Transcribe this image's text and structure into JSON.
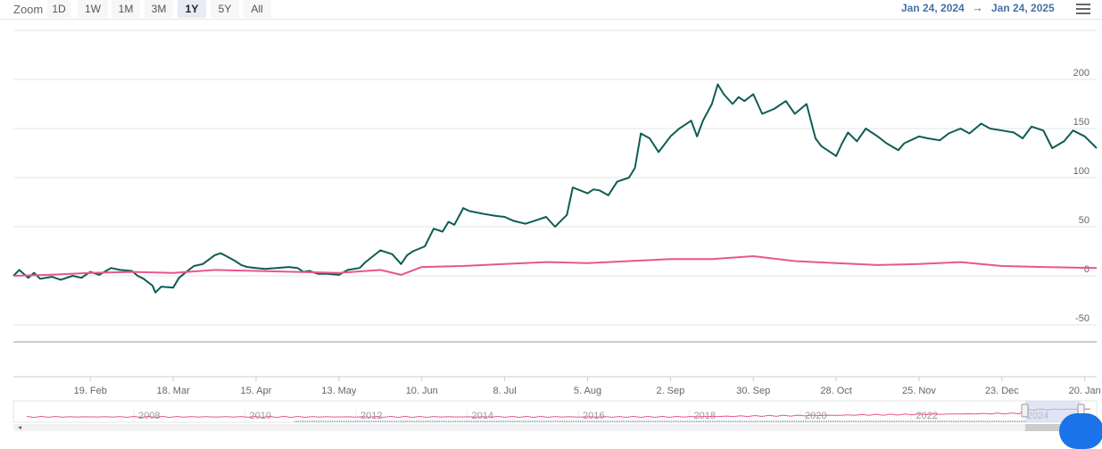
{
  "toolbar": {
    "zoom_label": "Zoom",
    "buttons": [
      "1D",
      "1W",
      "1M",
      "3M",
      "1Y",
      "5Y",
      "All"
    ],
    "active": "1Y",
    "range_from": "Jan 24, 2024",
    "range_arrow": "→",
    "range_to": "Jan 24, 2025"
  },
  "colors": {
    "series_1": "#0e5c55",
    "series_2": "#e8578a",
    "range_text": "#4572a7",
    "gridline": "#e6e6e6",
    "navigator_fill": "#c9d3ee"
  },
  "chart_data": {
    "type": "line",
    "x_tick_labels": [
      "19. Feb",
      "18. Mar",
      "15. Apr",
      "13. May",
      "10. Jun",
      "8. Jul",
      "5. Aug",
      "2. Sep",
      "30. Sep",
      "28. Oct",
      "25. Nov",
      "23. Dec",
      "20. Jan"
    ],
    "y_ticks": [
      200,
      150,
      100,
      50,
      0,
      -50
    ],
    "ylim": [
      -50,
      200
    ],
    "xlim": [
      "2024-01-24",
      "2025-01-24"
    ],
    "grid": true,
    "series": [
      {
        "color": "#0e5c55",
        "points": [
          [
            "2024-01-24",
            0
          ],
          [
            "2024-01-26",
            6
          ],
          [
            "2024-01-29",
            -2
          ],
          [
            "2024-01-31",
            3
          ],
          [
            "2024-02-02",
            -3
          ],
          [
            "2024-02-06",
            -1
          ],
          [
            "2024-02-09",
            -4
          ],
          [
            "2024-02-13",
            0
          ],
          [
            "2024-02-16",
            -2
          ],
          [
            "2024-02-19",
            4
          ],
          [
            "2024-02-22",
            1
          ],
          [
            "2024-02-26",
            8
          ],
          [
            "2024-02-29",
            6
          ],
          [
            "2024-03-04",
            5
          ],
          [
            "2024-03-06",
            0
          ],
          [
            "2024-03-08",
            -3
          ],
          [
            "2024-03-11",
            -10
          ],
          [
            "2024-03-12",
            -17
          ],
          [
            "2024-03-14",
            -11
          ],
          [
            "2024-03-18",
            -12
          ],
          [
            "2024-03-20",
            -2
          ],
          [
            "2024-03-22",
            3
          ],
          [
            "2024-03-25",
            10
          ],
          [
            "2024-03-28",
            12
          ],
          [
            "2024-04-01",
            21
          ],
          [
            "2024-04-03",
            23
          ],
          [
            "2024-04-05",
            20
          ],
          [
            "2024-04-08",
            15
          ],
          [
            "2024-04-10",
            11
          ],
          [
            "2024-04-12",
            9
          ],
          [
            "2024-04-15",
            8
          ],
          [
            "2024-04-18",
            7
          ],
          [
            "2024-04-22",
            8
          ],
          [
            "2024-04-26",
            9
          ],
          [
            "2024-04-29",
            8
          ],
          [
            "2024-05-01",
            4
          ],
          [
            "2024-05-03",
            5
          ],
          [
            "2024-05-06",
            2
          ],
          [
            "2024-05-09",
            2
          ],
          [
            "2024-05-13",
            1
          ],
          [
            "2024-05-16",
            6
          ],
          [
            "2024-05-20",
            8
          ],
          [
            "2024-05-22",
            14
          ],
          [
            "2024-05-27",
            26
          ],
          [
            "2024-05-31",
            22
          ],
          [
            "2024-06-03",
            12
          ],
          [
            "2024-06-05",
            21
          ],
          [
            "2024-06-07",
            25
          ],
          [
            "2024-06-11",
            30
          ],
          [
            "2024-06-14",
            48
          ],
          [
            "2024-06-17",
            45
          ],
          [
            "2024-06-19",
            55
          ],
          [
            "2024-06-21",
            52
          ],
          [
            "2024-06-24",
            69
          ],
          [
            "2024-06-26",
            66
          ],
          [
            "2024-07-01",
            63
          ],
          [
            "2024-07-05",
            61
          ],
          [
            "2024-07-08",
            60
          ],
          [
            "2024-07-11",
            56
          ],
          [
            "2024-07-15",
            53
          ],
          [
            "2024-07-18",
            56
          ],
          [
            "2024-07-22",
            60
          ],
          [
            "2024-07-25",
            50
          ],
          [
            "2024-07-29",
            62
          ],
          [
            "2024-07-31",
            90
          ],
          [
            "2024-08-05",
            84
          ],
          [
            "2024-08-07",
            88
          ],
          [
            "2024-08-09",
            87
          ],
          [
            "2024-08-12",
            82
          ],
          [
            "2024-08-15",
            96
          ],
          [
            "2024-08-19",
            100
          ],
          [
            "2024-08-21",
            110
          ],
          [
            "2024-08-23",
            145
          ],
          [
            "2024-08-26",
            140
          ],
          [
            "2024-08-29",
            126
          ],
          [
            "2024-09-02",
            142
          ],
          [
            "2024-09-05",
            150
          ],
          [
            "2024-09-09",
            158
          ],
          [
            "2024-09-11",
            142
          ],
          [
            "2024-09-13",
            158
          ],
          [
            "2024-09-16",
            175
          ],
          [
            "2024-09-18",
            195
          ],
          [
            "2024-09-20",
            185
          ],
          [
            "2024-09-23",
            175
          ],
          [
            "2024-09-25",
            182
          ],
          [
            "2024-09-27",
            178
          ],
          [
            "2024-09-30",
            185
          ],
          [
            "2024-10-03",
            165
          ],
          [
            "2024-10-07",
            170
          ],
          [
            "2024-10-11",
            178
          ],
          [
            "2024-10-14",
            165
          ],
          [
            "2024-10-18",
            175
          ],
          [
            "2024-10-21",
            140
          ],
          [
            "2024-10-23",
            132
          ],
          [
            "2024-10-25",
            128
          ],
          [
            "2024-10-28",
            122
          ],
          [
            "2024-10-30",
            135
          ],
          [
            "2024-11-01",
            146
          ],
          [
            "2024-11-04",
            137
          ],
          [
            "2024-11-07",
            150
          ],
          [
            "2024-11-11",
            142
          ],
          [
            "2024-11-14",
            135
          ],
          [
            "2024-11-18",
            128
          ],
          [
            "2024-11-20",
            135
          ],
          [
            "2024-11-25",
            142
          ],
          [
            "2024-11-28",
            140
          ],
          [
            "2024-12-02",
            138
          ],
          [
            "2024-12-05",
            145
          ],
          [
            "2024-12-09",
            150
          ],
          [
            "2024-12-12",
            145
          ],
          [
            "2024-12-16",
            155
          ],
          [
            "2024-12-19",
            150
          ],
          [
            "2024-12-23",
            148
          ],
          [
            "2024-12-27",
            146
          ],
          [
            "2024-12-30",
            140
          ],
          [
            "2025-01-02",
            152
          ],
          [
            "2025-01-06",
            148
          ],
          [
            "2025-01-09",
            130
          ],
          [
            "2025-01-13",
            137
          ],
          [
            "2025-01-16",
            148
          ],
          [
            "2025-01-20",
            142
          ],
          [
            "2025-01-24",
            130
          ]
        ]
      },
      {
        "color": "#e8578a",
        "points": [
          [
            "2024-01-24",
            0
          ],
          [
            "2024-02-05",
            1
          ],
          [
            "2024-02-19",
            3
          ],
          [
            "2024-03-04",
            4
          ],
          [
            "2024-03-18",
            3
          ],
          [
            "2024-04-01",
            6
          ],
          [
            "2024-04-15",
            5
          ],
          [
            "2024-04-29",
            4
          ],
          [
            "2024-05-13",
            3
          ],
          [
            "2024-05-27",
            6
          ],
          [
            "2024-06-03",
            1
          ],
          [
            "2024-06-10",
            9
          ],
          [
            "2024-06-24",
            10
          ],
          [
            "2024-07-08",
            12
          ],
          [
            "2024-07-22",
            14
          ],
          [
            "2024-08-05",
            13
          ],
          [
            "2024-08-19",
            15
          ],
          [
            "2024-09-02",
            17
          ],
          [
            "2024-09-16",
            17
          ],
          [
            "2024-09-30",
            20
          ],
          [
            "2024-10-14",
            15
          ],
          [
            "2024-10-28",
            13
          ],
          [
            "2024-11-11",
            11
          ],
          [
            "2024-11-25",
            12
          ],
          [
            "2024-12-09",
            14
          ],
          [
            "2024-12-23",
            10
          ],
          [
            "2025-01-06",
            9
          ],
          [
            "2025-01-24",
            8
          ]
        ]
      }
    ],
    "navigator": {
      "tick_labels": [
        "2008",
        "2010",
        "2012",
        "2014",
        "2016",
        "2018",
        "2020",
        "2022",
        "2024"
      ]
    }
  }
}
